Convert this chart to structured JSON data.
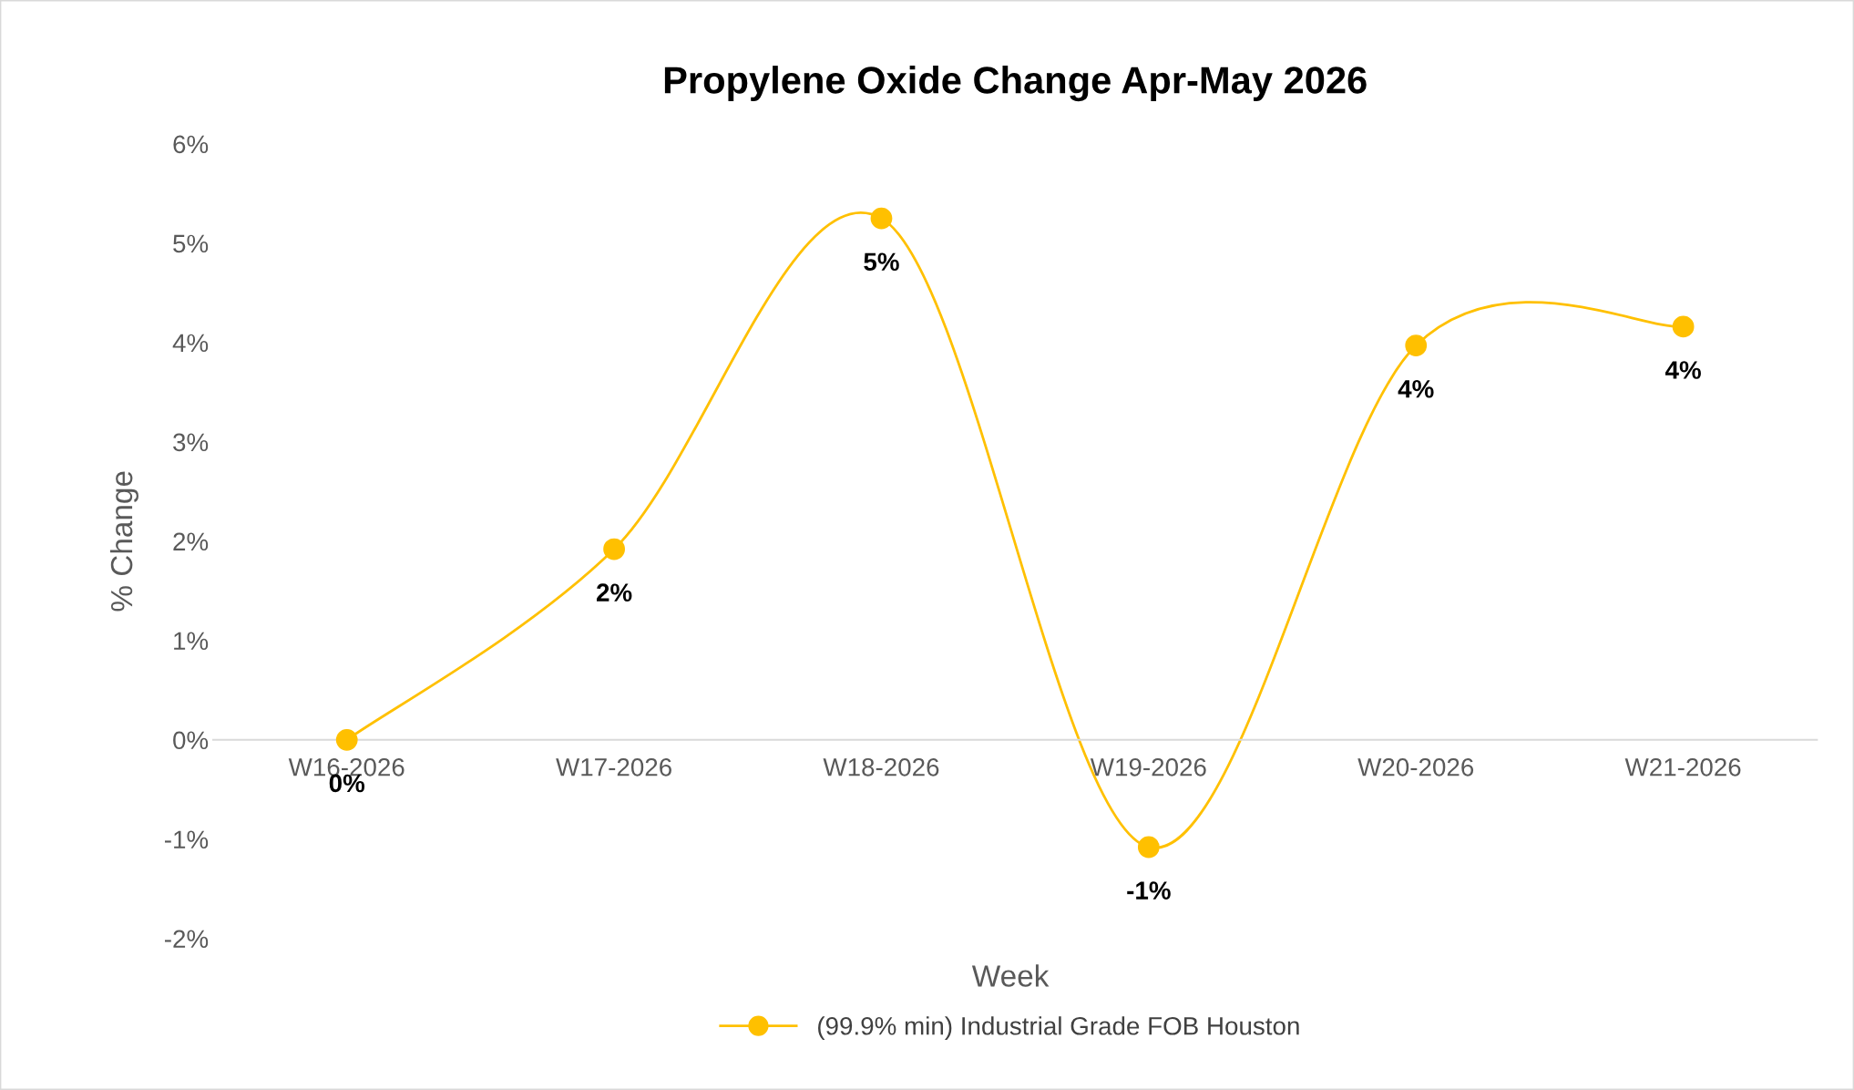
{
  "chart_data": {
    "type": "line",
    "title": "Propylene Oxide Change Apr-May 2026",
    "xlabel": "Week",
    "ylabel": "% Change",
    "categories": [
      "W16-2026",
      "W17-2026",
      "W18-2026",
      "W19-2026",
      "W20-2026",
      "W21-2026"
    ],
    "series": [
      {
        "name": "(99.9% min) Industrial Grade FOB Houston",
        "color": "#ffc000",
        "values": [
          0,
          1.92,
          5.25,
          -1.08,
          3.97,
          4.16
        ],
        "value_labels": [
          "0%",
          "2%",
          "5%",
          "-1%",
          "4%",
          "4%"
        ]
      }
    ],
    "ylim": [
      -2,
      6
    ],
    "yticks": [
      {
        "value": -2,
        "label": "-2%"
      },
      {
        "value": -1,
        "label": "-1%"
      },
      {
        "value": 0,
        "label": "0%"
      },
      {
        "value": 1,
        "label": "1%"
      },
      {
        "value": 2,
        "label": "2%"
      },
      {
        "value": 3,
        "label": "3%"
      },
      {
        "value": 4,
        "label": "4%"
      },
      {
        "value": 5,
        "label": "5%"
      },
      {
        "value": 6,
        "label": "6%"
      }
    ],
    "grid": false,
    "legend": "bottom",
    "marker": "circle",
    "line_style": "solid"
  }
}
